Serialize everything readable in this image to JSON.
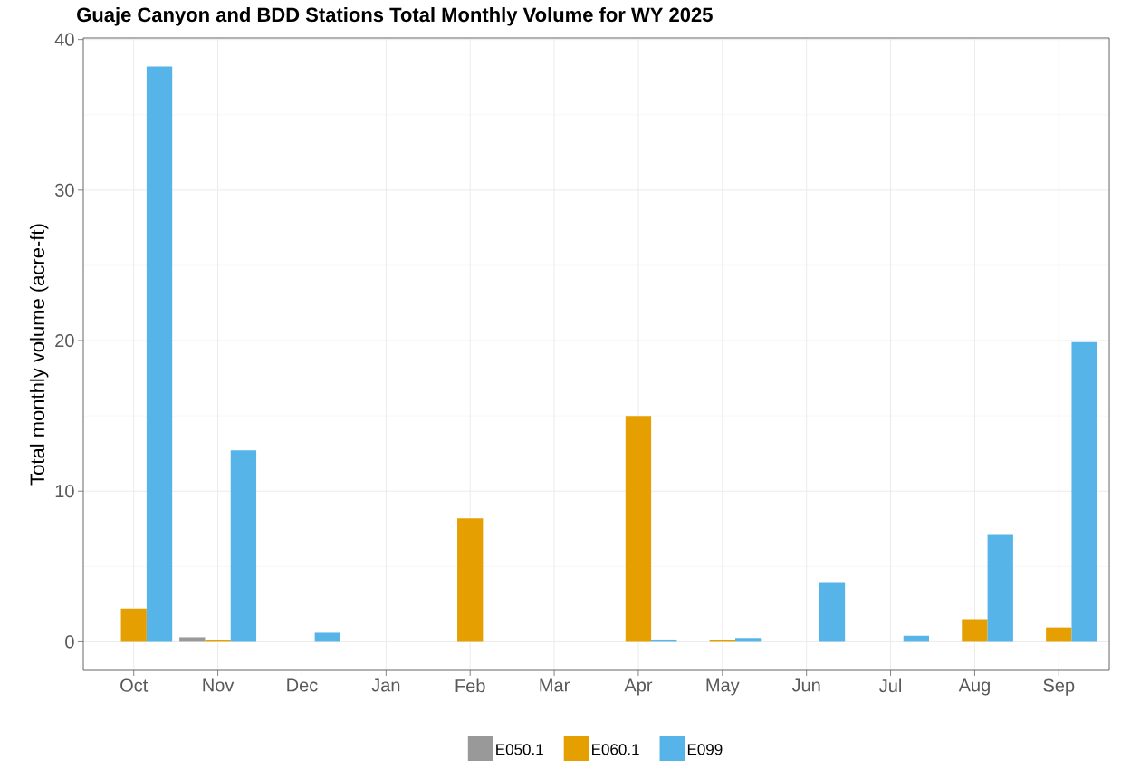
{
  "chart_data": {
    "type": "bar",
    "title": "Guaje Canyon and BDD Stations Total Monthly Volume for WY 2025",
    "ylabel": "Total monthly volume (acre-ft)",
    "categories": [
      "Oct",
      "Nov",
      "Dec",
      "Jan",
      "Feb",
      "Mar",
      "Apr",
      "May",
      "Jun",
      "Jul",
      "Aug",
      "Sep"
    ],
    "series": [
      {
        "name": "E050.1",
        "color": "#999999",
        "values": [
          0,
          0.3,
          0,
          0,
          0,
          0,
          0,
          0,
          0,
          0,
          0,
          0
        ]
      },
      {
        "name": "E060.1",
        "color": "#e69f00",
        "values": [
          2.2,
          0.1,
          0,
          0,
          8.2,
          0,
          15,
          0.1,
          0,
          0,
          1.5,
          0.95
        ]
      },
      {
        "name": "E099",
        "color": "#56b4e9",
        "values": [
          38.2,
          12.7,
          0.6,
          0,
          0,
          0,
          0.15,
          0.25,
          3.9,
          0.4,
          7.1,
          19.9
        ]
      }
    ],
    "ylim": [
      -1.9,
      40.1
    ],
    "yticks": [
      0,
      10,
      20,
      30,
      40
    ],
    "grid": true,
    "legend": "bottom"
  }
}
